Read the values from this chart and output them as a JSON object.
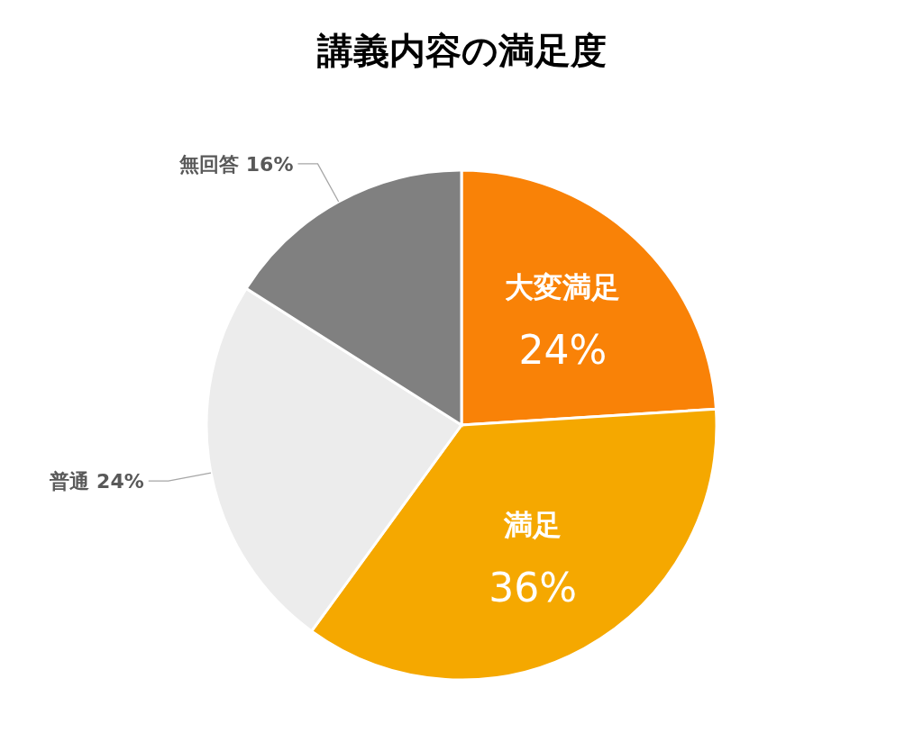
{
  "chart_data": {
    "type": "pie",
    "title": "講義内容の満足度",
    "categories": [
      "大変満足",
      "満足",
      "普通",
      "無回答"
    ],
    "values": [
      24,
      36,
      24,
      16
    ],
    "value_labels": [
      "24%",
      "36%",
      "24%",
      "16%"
    ],
    "colors": [
      "#f98207",
      "#f5a800",
      "#ececec",
      "#808080"
    ]
  }
}
